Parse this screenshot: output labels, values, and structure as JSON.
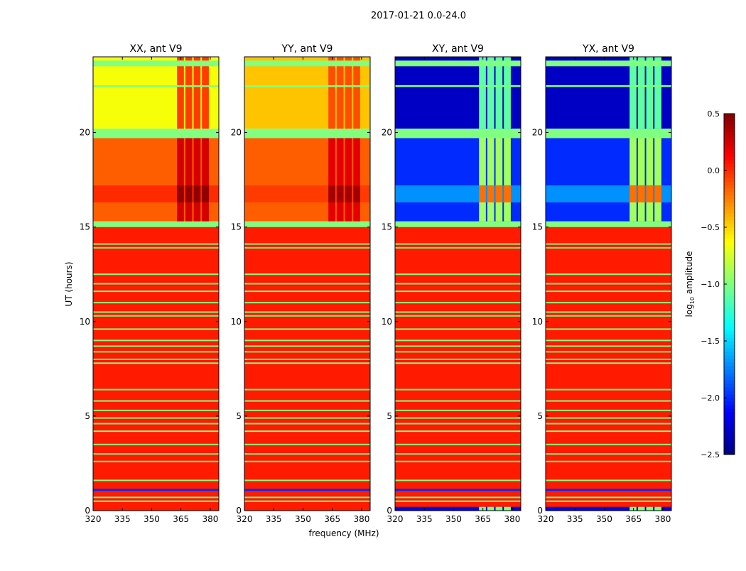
{
  "chart_data": {
    "type": "heatmap",
    "title": "2017-01-21 0.0-24.0",
    "xlabel": "frequency (MHz)",
    "ylabel": "UT (hours)",
    "xlim": [
      320,
      384.4
    ],
    "ylim": [
      0,
      24
    ],
    "xticks": [
      320,
      335,
      350,
      365,
      380
    ],
    "yticks": [
      0,
      5,
      10,
      15,
      20
    ],
    "colormap": "jet",
    "colorbar": {
      "label": "log10 amplitude",
      "label_main": "log",
      "label_sub": "10",
      "label_rest": " amplitude",
      "range": [
        -2.5,
        0.5
      ],
      "ticks": [
        "0.5",
        "0.0",
        "−0.5",
        "−1.0",
        "−1.5",
        "−2.0",
        "−2.5"
      ],
      "tick_values": [
        0.5,
        0.0,
        -0.5,
        -1.0,
        -1.5,
        -2.0,
        -2.5
      ]
    },
    "flag_value": -1.0,
    "flag_times": [
      0.5,
      0.7,
      1.6,
      2.6,
      3.0,
      3.5,
      4.2,
      4.6,
      4.9,
      5.3,
      5.8,
      6.4,
      7.8,
      8.0,
      8.4,
      8.7,
      9.0,
      9.6,
      10.3,
      10.5,
      11.0,
      11.6,
      12.0,
      12.5,
      13.9,
      14.1
    ],
    "band_mhz": [
      363,
      380
    ],
    "panels": [
      {
        "title": "XX, ant V9",
        "blocks": [
          {
            "t0": 0,
            "t1": 15,
            "base": 0.05,
            "band": 0.05
          },
          {
            "t0": 1.05,
            "t1": 1.15,
            "base": -2.0,
            "band": -2.0
          },
          {
            "t0": 15,
            "t1": 15.3,
            "base": -1.0,
            "band": -1.0
          },
          {
            "t0": 15.3,
            "t1": 19.7,
            "base": -0.15,
            "band": 0.25
          },
          {
            "t0": 16.3,
            "t1": 17.2,
            "base": 0.0,
            "band": 0.45
          },
          {
            "t0": 19.7,
            "t1": 20.2,
            "base": -1.0,
            "band": -1.0
          },
          {
            "t0": 20.2,
            "t1": 24,
            "base": -0.65,
            "band": -0.05
          },
          {
            "t0": 22.4,
            "t1": 22.5,
            "base": -1.0,
            "band": -1.0
          },
          {
            "t0": 23.5,
            "t1": 23.8,
            "base": -1.0,
            "band": -1.0
          }
        ]
      },
      {
        "title": "YY, ant V9",
        "blocks": [
          {
            "t0": 0,
            "t1": 15,
            "base": 0.05,
            "band": 0.05
          },
          {
            "t0": 1.05,
            "t1": 1.15,
            "base": -2.0,
            "band": -2.0
          },
          {
            "t0": 15,
            "t1": 15.3,
            "base": -1.0,
            "band": -1.0
          },
          {
            "t0": 15.3,
            "t1": 19.7,
            "base": -0.15,
            "band": 0.2
          },
          {
            "t0": 16.3,
            "t1": 17.2,
            "base": -0.05,
            "band": 0.4
          },
          {
            "t0": 19.7,
            "t1": 20.2,
            "base": -1.0,
            "band": -1.0
          },
          {
            "t0": 20.2,
            "t1": 24,
            "base": -0.45,
            "band": -0.1
          },
          {
            "t0": 22.4,
            "t1": 22.5,
            "base": -1.0,
            "band": -1.0
          },
          {
            "t0": 23.5,
            "t1": 23.8,
            "base": -1.0,
            "band": -1.0
          }
        ]
      },
      {
        "title": "XY, ant V9",
        "blocks": [
          {
            "t0": 0,
            "t1": 15,
            "base": 0.05,
            "band": 0.05
          },
          {
            "t0": 0,
            "t1": 0.2,
            "base": -2.2,
            "band": -1.0
          },
          {
            "t0": 1.05,
            "t1": 1.15,
            "base": -2.0,
            "band": -2.0
          },
          {
            "t0": 15,
            "t1": 15.3,
            "base": -1.0,
            "band": -1.0
          },
          {
            "t0": 15.3,
            "t1": 19.7,
            "base": -2.0,
            "band": -0.9
          },
          {
            "t0": 16.3,
            "t1": 17.2,
            "base": -1.7,
            "band": -0.2
          },
          {
            "t0": 19.7,
            "t1": 20.2,
            "base": -1.0,
            "band": -1.0
          },
          {
            "t0": 20.2,
            "t1": 24,
            "base": -2.3,
            "band": -1.1
          },
          {
            "t0": 22.4,
            "t1": 22.5,
            "base": -1.0,
            "band": -1.0
          },
          {
            "t0": 23.5,
            "t1": 23.8,
            "base": -1.0,
            "band": -1.0
          }
        ]
      },
      {
        "title": "YX, ant V9",
        "blocks": [
          {
            "t0": 0,
            "t1": 15,
            "base": 0.05,
            "band": 0.05
          },
          {
            "t0": 0,
            "t1": 0.2,
            "base": -2.2,
            "band": -1.0
          },
          {
            "t0": 1.05,
            "t1": 1.15,
            "base": -2.0,
            "band": -2.0
          },
          {
            "t0": 15,
            "t1": 15.3,
            "base": -1.0,
            "band": -1.0
          },
          {
            "t0": 15.3,
            "t1": 19.7,
            "base": -2.0,
            "band": -0.9
          },
          {
            "t0": 16.3,
            "t1": 17.2,
            "base": -1.7,
            "band": -0.2
          },
          {
            "t0": 19.7,
            "t1": 20.2,
            "base": -1.0,
            "band": -1.0
          },
          {
            "t0": 20.2,
            "t1": 24,
            "base": -2.3,
            "band": -1.1
          },
          {
            "t0": 22.4,
            "t1": 22.5,
            "base": -1.0,
            "band": -1.0
          },
          {
            "t0": 23.5,
            "t1": 23.8,
            "base": -1.0,
            "band": -1.0
          }
        ]
      }
    ]
  }
}
